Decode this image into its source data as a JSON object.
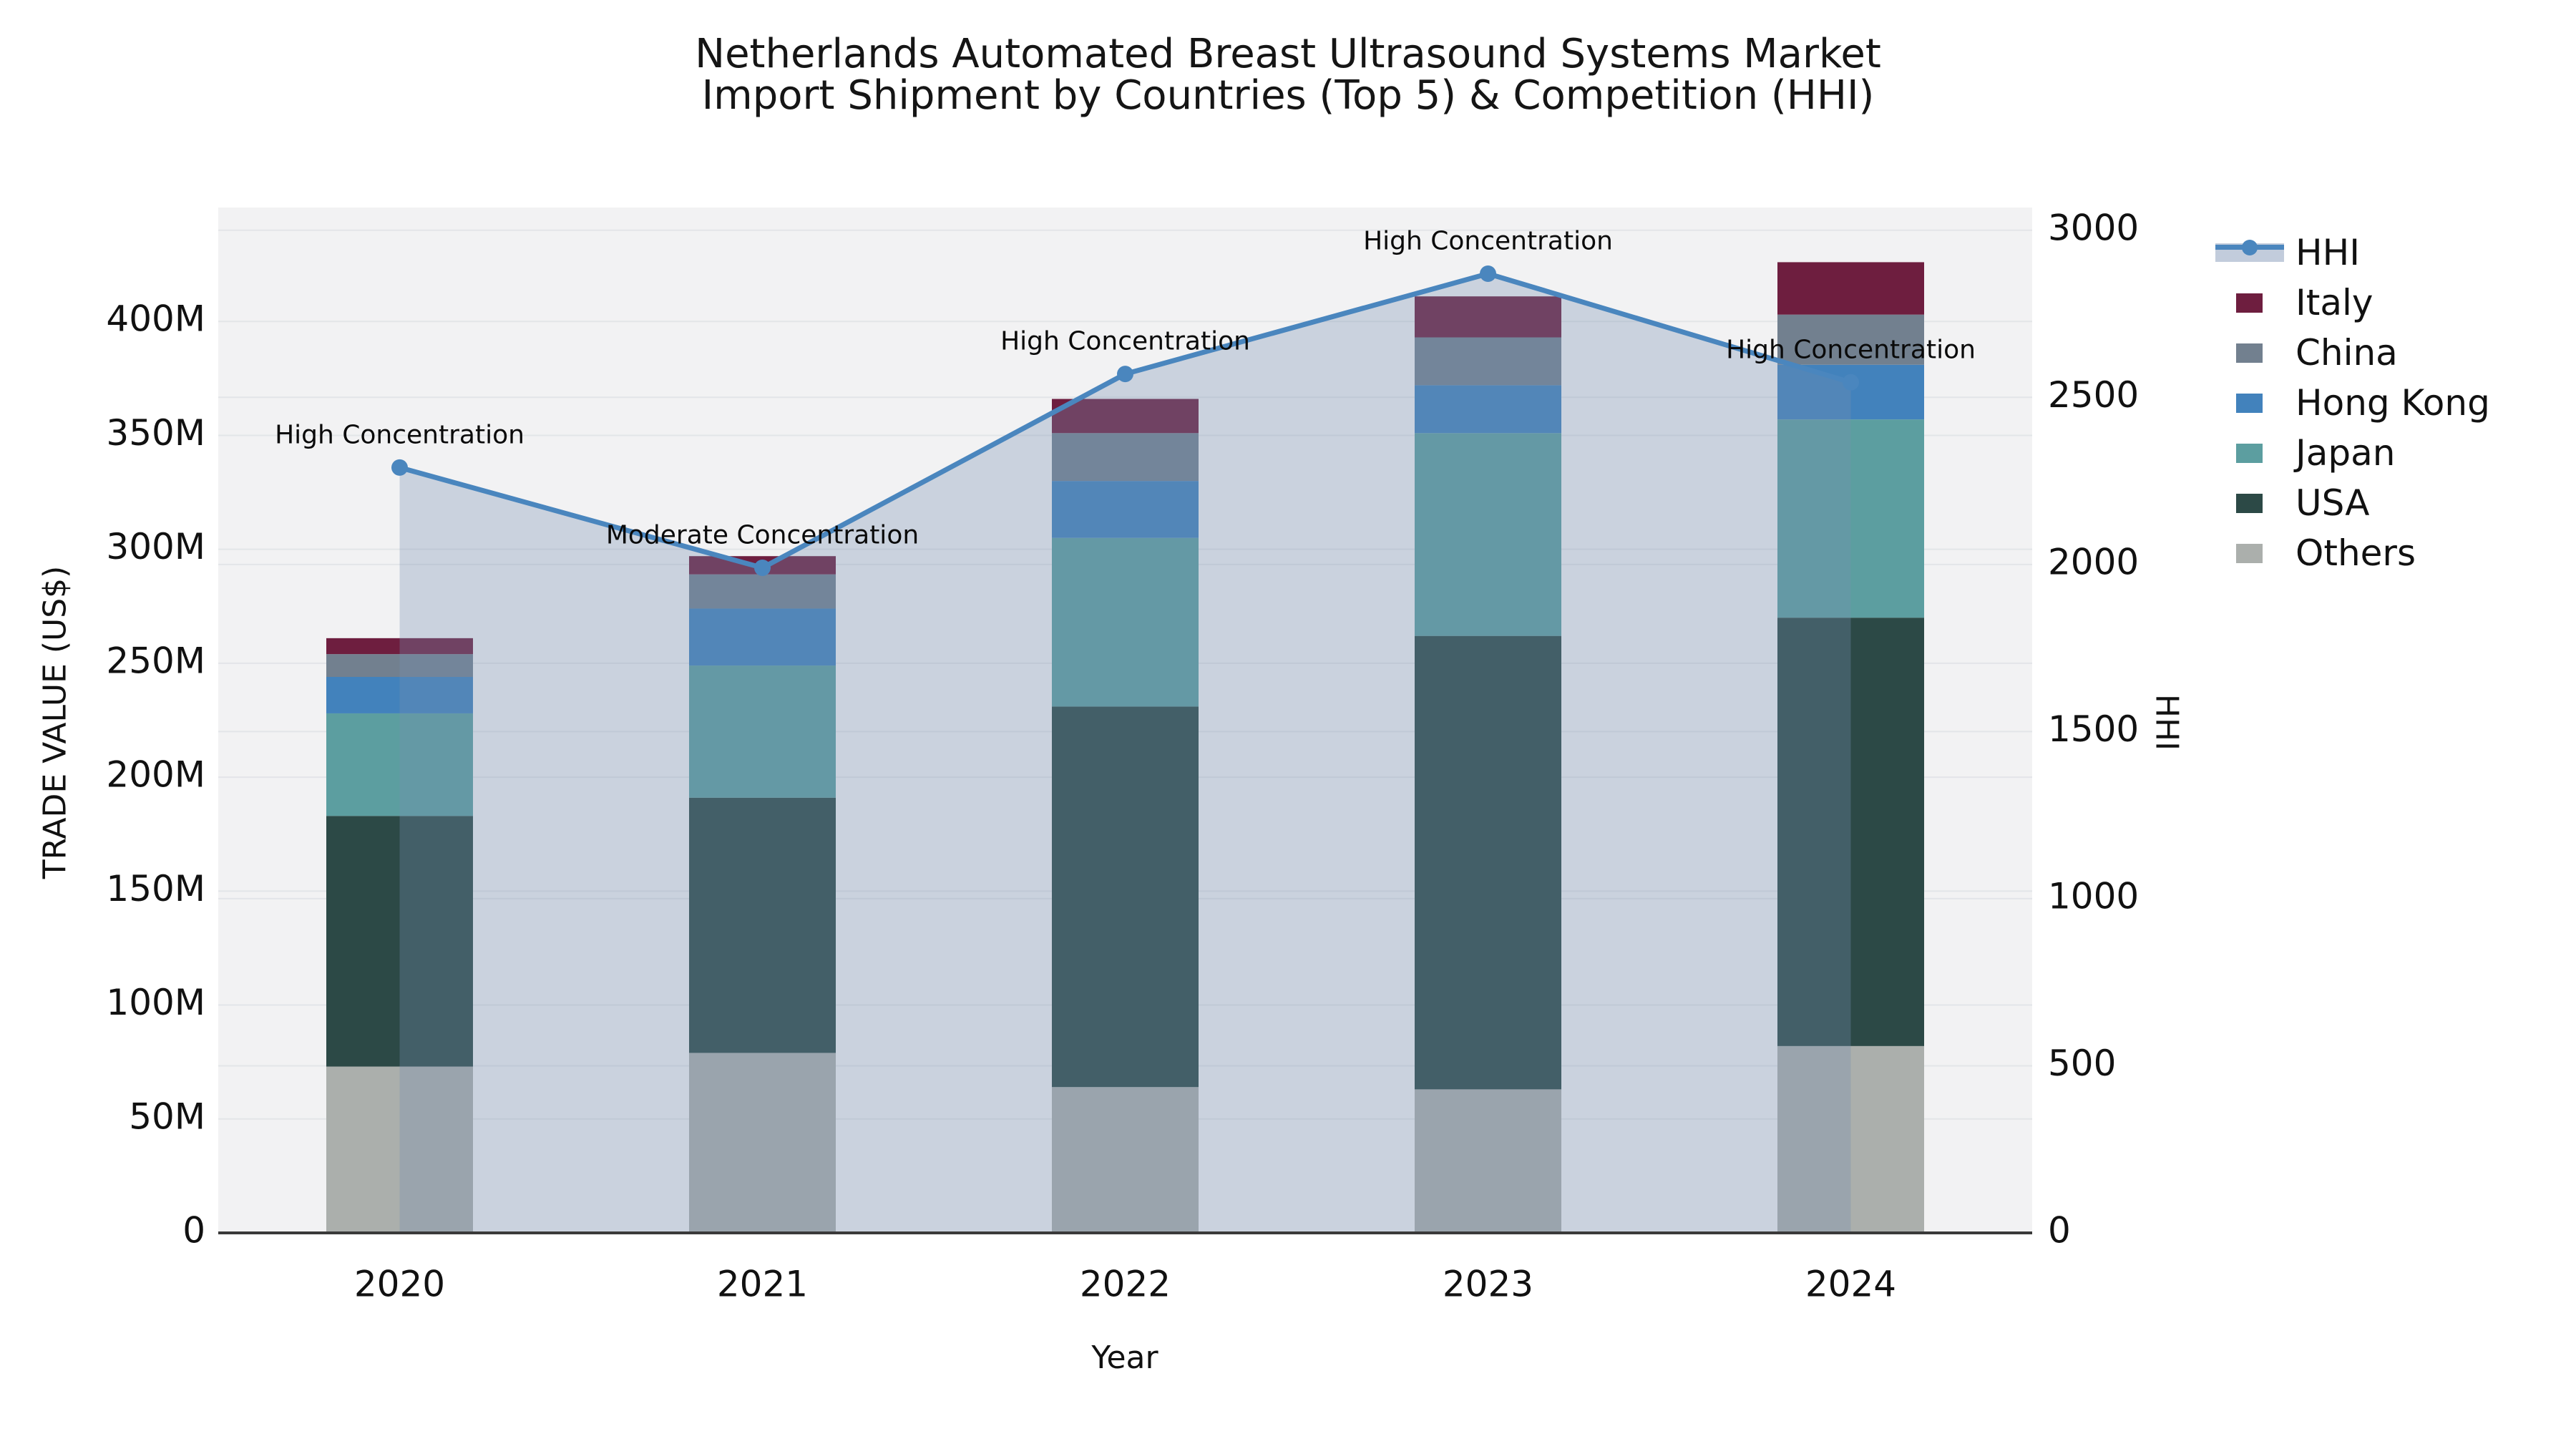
{
  "chart_data": {
    "type": "combo-stacked-bar-line",
    "title_lines": [
      "Netherlands Automated Breast Ultrasound Systems Market",
      "Import Shipment by Countries (Top 5) & Competition (HHI)"
    ],
    "x": {
      "label": "Year",
      "categories": [
        "2020",
        "2021",
        "2022",
        "2023",
        "2024"
      ]
    },
    "y_left": {
      "label": "TRADE VALUE (US$)",
      "unit": "US$ millions",
      "tick_values": [
        0,
        50,
        100,
        150,
        200,
        250,
        300,
        350,
        400
      ],
      "tick_labels": [
        "0",
        "50M",
        "100M",
        "150M",
        "200M",
        "250M",
        "300M",
        "350M",
        "400M"
      ],
      "axis_max": 450
    },
    "y_right": {
      "label": "HHI",
      "tick_values": [
        0,
        500,
        1000,
        1500,
        2000,
        2500,
        3000
      ],
      "tick_labels": [
        "0",
        "500",
        "1000",
        "1500",
        "2000",
        "2500",
        "3000"
      ],
      "axis_max": 3068
    },
    "stack_series_bottom_to_top": [
      {
        "name": "Others",
        "color": "#abafac",
        "values": [
          73,
          79,
          64,
          63,
          82
        ]
      },
      {
        "name": "USA",
        "color": "#2c4946",
        "values": [
          110,
          112,
          167,
          199,
          188
        ]
      },
      {
        "name": "Japan",
        "color": "#5c9ea0",
        "values": [
          45,
          58,
          74,
          89,
          87
        ]
      },
      {
        "name": "Hong Kong",
        "color": "#4282bc",
        "values": [
          16,
          25,
          25,
          21,
          24
        ]
      },
      {
        "name": "China",
        "color": "#72808f",
        "values": [
          10,
          15,
          21,
          21,
          22
        ]
      },
      {
        "name": "Italy",
        "color": "#6e1e3f",
        "values": [
          7,
          8,
          15,
          18,
          23
        ]
      }
    ],
    "bar_totals": [
      261,
      297,
      366,
      411,
      426
    ],
    "hhi": {
      "name": "HHI",
      "line_color": "#4a86be",
      "area_color": "rgba(119,142,178,0.32)",
      "values": [
        2290,
        1990,
        2570,
        2870,
        2545
      ],
      "annotations": [
        "High Concentration",
        "Moderate Concentration",
        "High Concentration",
        "High Concentration",
        "High Concentration"
      ]
    },
    "legend": [
      {
        "label": "HHI"
      },
      {
        "label": "Italy"
      },
      {
        "label": "China"
      },
      {
        "label": "Hong Kong"
      },
      {
        "label": "Japan"
      },
      {
        "label": "USA"
      },
      {
        "label": "Others"
      }
    ],
    "style": {
      "plot_bg": "#f2f2f3",
      "gridline": "#e3e5e8",
      "axis_line": "#3a3a3a",
      "text_color": "#111111"
    }
  }
}
